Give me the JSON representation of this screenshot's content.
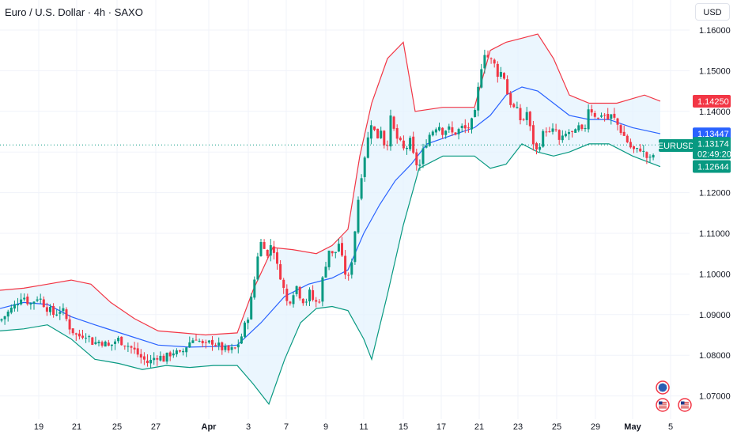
{
  "title": "Euro / U.S. Dollar · 4h · SAXO",
  "currency_button": "USD",
  "symbol_label": "EURUSD",
  "colors": {
    "up": "#089981",
    "down": "#f23645",
    "basis": "#2962ff",
    "upper_band": "#f23645",
    "lower_band": "#089981",
    "band_fill": "#e3f2fd",
    "axis_text": "#131722",
    "grid": "#f0f3fa"
  },
  "price_tags": {
    "upper": "1.14250",
    "basis": "1.13447",
    "last": "1.13174",
    "countdown": "02:49:20",
    "lower": "1.12644"
  },
  "events": [
    "globe-event-icon",
    "us-flag-event-icon",
    "us-flag-event-icon"
  ],
  "chart_data": {
    "type": "candlestick",
    "y_ticks": [
      "1.16000",
      "1.15000",
      "1.14000",
      "1.13000",
      "1.12000",
      "1.11000",
      "1.10000",
      "1.09000",
      "1.08000",
      "1.07000"
    ],
    "y_range": [
      1.065,
      1.163
    ],
    "x_ticks": [
      {
        "label": "19",
        "bold": false
      },
      {
        "label": "21",
        "bold": false
      },
      {
        "label": "25",
        "bold": false
      },
      {
        "label": "27",
        "bold": false
      },
      {
        "label": "Apr",
        "bold": true
      },
      {
        "label": "3",
        "bold": false
      },
      {
        "label": "7",
        "bold": false
      },
      {
        "label": "9",
        "bold": false
      },
      {
        "label": "11",
        "bold": false
      },
      {
        "label": "15",
        "bold": false
      },
      {
        "label": "17",
        "bold": false
      },
      {
        "label": "21",
        "bold": false
      },
      {
        "label": "23",
        "bold": false
      },
      {
        "label": "25",
        "bold": false
      },
      {
        "label": "29",
        "bold": false
      },
      {
        "label": "May",
        "bold": true
      },
      {
        "label": "5",
        "bold": false
      }
    ],
    "close_path": [
      [
        0,
        1.0885
      ],
      [
        10,
        1.0905
      ],
      [
        20,
        1.0925
      ],
      [
        28,
        1.095
      ],
      [
        38,
        1.0925
      ],
      [
        48,
        1.0945
      ],
      [
        58,
        1.092
      ],
      [
        68,
        1.09
      ],
      [
        78,
        1.0915
      ],
      [
        88,
        1.087
      ],
      [
        98,
        1.0845
      ],
      [
        108,
        1.0855
      ],
      [
        118,
        1.083
      ],
      [
        128,
        1.0835
      ],
      [
        138,
        1.082
      ],
      [
        148,
        1.084
      ],
      [
        158,
        1.083
      ],
      [
        168,
        1.0815
      ],
      [
        178,
        1.0795
      ],
      [
        188,
        1.078
      ],
      [
        198,
        1.08
      ],
      [
        208,
        1.079
      ],
      [
        218,
        1.081
      ],
      [
        228,
        1.08
      ],
      [
        238,
        1.083
      ],
      [
        248,
        1.0845
      ],
      [
        258,
        1.082
      ],
      [
        268,
        1.0835
      ],
      [
        278,
        1.082
      ],
      [
        288,
        1.081
      ],
      [
        298,
        1.0815
      ],
      [
        306,
        1.085
      ],
      [
        314,
        1.09
      ],
      [
        320,
        1.096
      ],
      [
        326,
        1.105
      ],
      [
        332,
        1.109
      ],
      [
        338,
        1.104
      ],
      [
        344,
        1.1085
      ],
      [
        350,
        1.102
      ],
      [
        356,
        1.099
      ],
      [
        362,
        1.093
      ],
      [
        368,
        1.094
      ],
      [
        374,
        1.0975
      ],
      [
        380,
        1.0945
      ],
      [
        386,
        1.093
      ],
      [
        392,
        1.0955
      ],
      [
        398,
        1.0925
      ],
      [
        404,
        1.094
      ],
      [
        410,
        1.101
      ],
      [
        416,
        1.106
      ],
      [
        422,
        1.104
      ],
      [
        428,
        1.108
      ],
      [
        434,
        1.102
      ],
      [
        440,
        1.098
      ],
      [
        446,
        1.105
      ],
      [
        452,
        1.117
      ],
      [
        458,
        1.126
      ],
      [
        464,
        1.132
      ],
      [
        470,
        1.138
      ],
      [
        476,
        1.133
      ],
      [
        482,
        1.136
      ],
      [
        488,
        1.13
      ],
      [
        494,
        1.138
      ],
      [
        500,
        1.134
      ],
      [
        506,
        1.132
      ],
      [
        512,
        1.13
      ],
      [
        518,
        1.133
      ],
      [
        524,
        1.128
      ],
      [
        530,
        1.126
      ],
      [
        536,
        1.131
      ],
      [
        542,
        1.134
      ],
      [
        548,
        1.1355
      ],
      [
        554,
        1.137
      ],
      [
        560,
        1.135
      ],
      [
        566,
        1.136
      ],
      [
        572,
        1.1345
      ],
      [
        578,
        1.135
      ],
      [
        584,
        1.136
      ],
      [
        590,
        1.1355
      ],
      [
        596,
        1.137
      ],
      [
        602,
        1.14
      ],
      [
        606,
        1.148
      ],
      [
        612,
        1.155
      ],
      [
        618,
        1.153
      ],
      [
        624,
        1.152
      ],
      [
        630,
        1.149
      ],
      [
        636,
        1.15
      ],
      [
        642,
        1.144
      ],
      [
        648,
        1.141
      ],
      [
        654,
        1.14
      ],
      [
        660,
        1.137
      ],
      [
        666,
        1.14
      ],
      [
        672,
        1.134
      ],
      [
        678,
        1.13
      ],
      [
        684,
        1.133
      ],
      [
        690,
        1.136
      ],
      [
        696,
        1.134
      ],
      [
        702,
        1.136
      ],
      [
        708,
        1.132
      ],
      [
        714,
        1.134
      ],
      [
        720,
        1.135
      ],
      [
        726,
        1.134
      ],
      [
        732,
        1.136
      ],
      [
        738,
        1.134
      ],
      [
        744,
        1.141
      ],
      [
        750,
        1.14
      ],
      [
        756,
        1.138
      ],
      [
        762,
        1.14
      ],
      [
        768,
        1.138
      ],
      [
        774,
        1.139
      ],
      [
        780,
        1.137
      ],
      [
        786,
        1.135
      ],
      [
        792,
        1.133
      ],
      [
        798,
        1.131
      ],
      [
        804,
        1.13
      ],
      [
        810,
        1.131
      ],
      [
        816,
        1.129
      ],
      [
        822,
        1.128
      ],
      [
        828,
        1.13
      ],
      [
        832,
        1.1317
      ]
    ],
    "bollinger": {
      "upper": [
        [
          0,
          1.096
        ],
        [
          30,
          1.0965
        ],
        [
          60,
          1.0975
        ],
        [
          90,
          1.0985
        ],
        [
          115,
          1.0975
        ],
        [
          140,
          1.093
        ],
        [
          170,
          1.089
        ],
        [
          200,
          1.086
        ],
        [
          230,
          1.0855
        ],
        [
          260,
          1.085
        ],
        [
          300,
          1.0855
        ],
        [
          320,
          1.096
        ],
        [
          345,
          1.1065
        ],
        [
          370,
          1.106
        ],
        [
          400,
          1.105
        ],
        [
          420,
          1.107
        ],
        [
          440,
          1.111
        ],
        [
          455,
          1.129
        ],
        [
          470,
          1.142
        ],
        [
          490,
          1.153
        ],
        [
          510,
          1.157
        ],
        [
          525,
          1.14
        ],
        [
          560,
          1.141
        ],
        [
          600,
          1.141
        ],
        [
          620,
          1.155
        ],
        [
          640,
          1.157
        ],
        [
          660,
          1.158
        ],
        [
          680,
          1.159
        ],
        [
          700,
          1.153
        ],
        [
          720,
          1.144
        ],
        [
          745,
          1.142
        ],
        [
          780,
          1.142
        ],
        [
          815,
          1.144
        ],
        [
          835,
          1.1425
        ]
      ],
      "basis": [
        [
          0,
          1.0915
        ],
        [
          30,
          1.093
        ],
        [
          60,
          1.0925
        ],
        [
          90,
          1.0895
        ],
        [
          120,
          1.0875
        ],
        [
          160,
          1.085
        ],
        [
          200,
          1.0825
        ],
        [
          240,
          1.082
        ],
        [
          280,
          1.0822
        ],
        [
          300,
          1.0825
        ],
        [
          330,
          1.088
        ],
        [
          360,
          1.0945
        ],
        [
          390,
          1.0975
        ],
        [
          420,
          1.099
        ],
        [
          440,
          1.101
        ],
        [
          460,
          1.11
        ],
        [
          480,
          1.117
        ],
        [
          500,
          1.123
        ],
        [
          520,
          1.127
        ],
        [
          540,
          1.132
        ],
        [
          570,
          1.134
        ],
        [
          600,
          1.136
        ],
        [
          620,
          1.139
        ],
        [
          640,
          1.144
        ],
        [
          660,
          1.146
        ],
        [
          680,
          1.145
        ],
        [
          700,
          1.142
        ],
        [
          720,
          1.139
        ],
        [
          745,
          1.138
        ],
        [
          770,
          1.138
        ],
        [
          800,
          1.136
        ],
        [
          835,
          1.1345
        ]
      ],
      "lower": [
        [
          0,
          1.086
        ],
        [
          30,
          1.0865
        ],
        [
          60,
          1.0875
        ],
        [
          90,
          1.084
        ],
        [
          120,
          1.079
        ],
        [
          150,
          1.078
        ],
        [
          180,
          1.0765
        ],
        [
          210,
          1.0775
        ],
        [
          240,
          1.077
        ],
        [
          270,
          1.0775
        ],
        [
          300,
          1.0775
        ],
        [
          320,
          1.073
        ],
        [
          340,
          1.068
        ],
        [
          360,
          1.079
        ],
        [
          380,
          1.088
        ],
        [
          400,
          1.0915
        ],
        [
          420,
          1.092
        ],
        [
          440,
          1.091
        ],
        [
          460,
          1.084
        ],
        [
          470,
          1.079
        ],
        [
          490,
          1.095
        ],
        [
          510,
          1.112
        ],
        [
          530,
          1.126
        ],
        [
          560,
          1.129
        ],
        [
          600,
          1.129
        ],
        [
          620,
          1.126
        ],
        [
          640,
          1.127
        ],
        [
          660,
          1.132
        ],
        [
          680,
          1.13
        ],
        [
          700,
          1.129
        ],
        [
          720,
          1.13
        ],
        [
          745,
          1.132
        ],
        [
          770,
          1.132
        ],
        [
          800,
          1.129
        ],
        [
          835,
          1.1264
        ]
      ]
    },
    "last_price": 1.13174,
    "upper_band_value": 1.1425,
    "basis_value": 1.13447,
    "lower_band_value": 1.12644
  }
}
